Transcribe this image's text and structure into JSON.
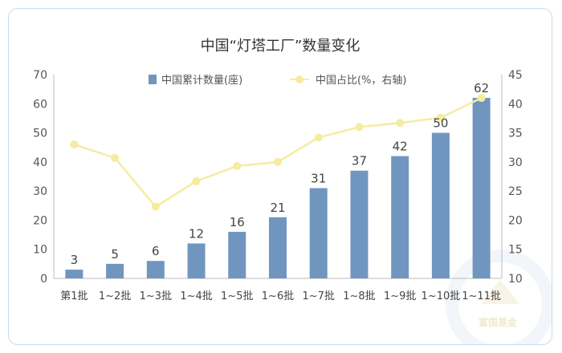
{
  "chart_data": {
    "type": "bar",
    "title": "中国“灯塔工厂”数量变化",
    "categories": [
      "第1批",
      "1~2批",
      "1~3批",
      "1~4批",
      "1~5批",
      "1~6批",
      "1~7批",
      "1~8批",
      "1~9批",
      "1~10批",
      "1~11批"
    ],
    "series": [
      {
        "name": "中国累计数量(座)",
        "type": "bar",
        "axis": "left",
        "color": "#7096c0",
        "values": [
          3,
          5,
          6,
          12,
          16,
          21,
          31,
          37,
          42,
          50,
          62
        ],
        "data_labels": [
          "3",
          "5",
          "6",
          "12",
          "16",
          "21",
          "31",
          "37",
          "42",
          "50",
          "62"
        ]
      },
      {
        "name": "中国占比(%，右轴)",
        "type": "line",
        "axis": "right",
        "color": "#f5eca0",
        "values": [
          33.0,
          30.7,
          22.3,
          26.7,
          29.3,
          30.0,
          34.2,
          36.0,
          36.7,
          37.6,
          41.0
        ]
      }
    ],
    "y_left": {
      "min": 0,
      "max": 70,
      "ticks": [
        "0",
        "10",
        "20",
        "30",
        "40",
        "50",
        "60",
        "70"
      ]
    },
    "y_right": {
      "min": 10,
      "max": 45,
      "ticks": [
        "10",
        "15",
        "20",
        "25",
        "30",
        "35",
        "40",
        "45"
      ]
    },
    "grid": false,
    "legend_position": "top-center"
  },
  "watermark": {
    "text": "富国基金"
  }
}
